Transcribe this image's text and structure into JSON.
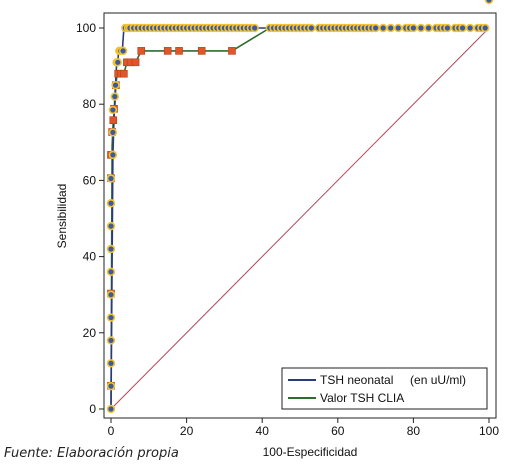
{
  "source_note": "Fuente: Elaboración propia",
  "chart_data": {
    "type": "line",
    "title": "",
    "xlabel": "100-Especificidad",
    "ylabel": "Sensibilidad",
    "xlim": [
      0,
      100
    ],
    "ylim": [
      0,
      100
    ],
    "xticks": [
      0,
      20,
      40,
      60,
      80,
      100
    ],
    "yticks": [
      0,
      20,
      40,
      60,
      80,
      100
    ],
    "grid": false,
    "legend_position": "bottom-right",
    "series": [
      {
        "name": "TSH neonatal     (en uU/ml)",
        "color": "#2b3a7a",
        "marker_fill": "#3b5aa3",
        "marker_edge": "#f2c230",
        "marker": "circle",
        "x": [
          0,
          0.5,
          0.8,
          1.0,
          1.2,
          1.5,
          1.8,
          2.0,
          2.3,
          2.6,
          3.0,
          3.4,
          3.8,
          4.5,
          5.5,
          7,
          9,
          11,
          14,
          17,
          20,
          24,
          28,
          32,
          36,
          40,
          42,
          46,
          50,
          55,
          60,
          65,
          70,
          75,
          80,
          85,
          90,
          95,
          100
        ],
        "y": [
          0,
          66.7,
          76,
          82,
          85,
          91,
          91,
          94,
          94,
          94,
          94,
          100,
          100,
          100,
          100,
          100,
          100,
          100,
          100,
          100,
          100,
          100,
          100,
          100,
          100,
          100,
          100,
          100,
          100,
          100,
          100,
          100,
          100,
          100,
          100,
          100,
          100,
          100,
          100
        ],
        "markers_x": [
          0,
          0,
          0,
          0,
          0,
          0,
          0,
          0,
          0,
          0,
          0,
          0.5,
          0.5,
          0.5,
          1.0,
          1.2,
          1.5,
          1.8,
          2.2,
          2.6,
          3.2,
          3.8,
          4.5,
          5,
          6,
          7,
          8,
          9,
          10,
          11,
          12,
          13,
          14,
          15,
          16,
          17,
          18,
          19,
          20,
          21,
          22,
          23,
          24,
          25,
          26,
          27,
          28,
          29,
          30,
          31,
          32,
          33,
          34,
          35,
          36,
          37,
          38,
          42,
          43,
          44,
          45,
          46,
          47,
          48,
          49,
          50,
          51,
          52,
          53,
          55,
          56,
          57,
          58,
          59,
          60,
          61,
          62,
          63,
          64,
          65,
          66,
          67,
          68,
          69,
          70,
          72,
          74,
          76,
          78,
          79,
          80,
          82,
          84,
          86,
          87,
          88,
          89,
          91,
          92,
          93,
          95,
          97,
          98,
          99,
          100
        ],
        "markers_y": [
          0,
          6,
          12,
          18,
          24,
          30,
          36,
          42,
          48,
          54,
          60.5,
          66.7,
          72.6,
          78.5,
          82,
          85,
          91,
          91,
          94,
          94,
          94,
          100,
          100,
          100,
          100,
          100,
          100,
          100,
          100,
          100,
          100,
          100,
          100,
          100,
          100,
          100,
          100,
          100,
          100,
          100,
          100,
          100,
          100,
          100,
          100,
          100,
          100,
          100,
          100,
          100,
          100,
          100,
          100,
          100,
          100,
          100,
          100,
          100,
          100,
          100,
          100,
          100,
          100,
          100,
          100,
          100,
          100,
          100,
          100,
          100,
          100,
          100,
          100,
          100,
          100,
          100,
          100,
          100,
          100,
          100,
          100,
          100,
          100,
          100,
          100,
          100,
          100,
          100,
          100,
          100,
          100,
          100,
          100,
          100,
          100,
          100,
          100,
          100,
          100,
          100,
          100,
          100,
          100,
          100
        ]
      },
      {
        "name": "Valor TSH CLIA",
        "color": "#2e6b2e",
        "marker_fill": "#e0562a",
        "marker_edge": "#b0401a",
        "marker": "square",
        "x": [
          0,
          0.3,
          0.6,
          1.0,
          1.3,
          1.6,
          2.0,
          2.6,
          3.4,
          4.2,
          5.2,
          6.5,
          8,
          15,
          18,
          24,
          32,
          42,
          60,
          80,
          100
        ],
        "y": [
          0,
          69,
          76,
          79,
          85,
          88,
          88,
          88,
          88,
          91,
          91,
          91,
          94,
          94,
          94,
          94,
          94,
          100,
          100,
          100,
          100
        ],
        "markers_x": [
          0,
          0,
          0,
          0,
          0.3,
          0.6,
          0.8,
          1.3,
          1.9,
          2.6,
          3.4,
          4.2,
          5.2,
          6.5,
          8,
          15,
          18,
          24,
          32
        ],
        "markers_y": [
          6.1,
          30.3,
          60.6,
          66.7,
          72.7,
          75.8,
          78.8,
          85,
          88,
          88,
          88,
          91,
          91,
          91,
          94,
          94,
          94,
          94,
          94
        ]
      },
      {
        "name": "",
        "color": "#b04a5a",
        "marker": "none",
        "x": [
          0,
          100
        ],
        "y": [
          0,
          100
        ]
      }
    ]
  }
}
